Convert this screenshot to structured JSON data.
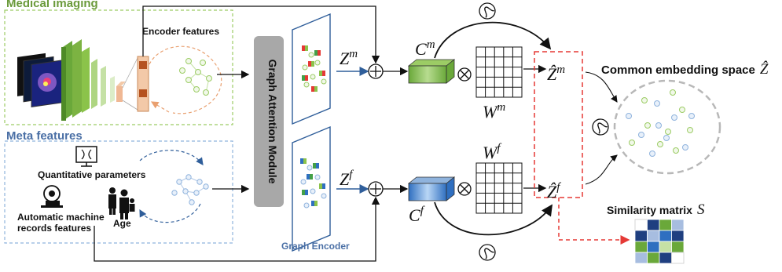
{
  "medical_section": {
    "title": "Medical imaging",
    "encoder_label": "Encoder features"
  },
  "meta_section": {
    "title": "Meta features",
    "quantitative_label": "Quantitative parameters",
    "machine_label": "Automatic machine",
    "machine_label_2": "records features",
    "age_label": "Age"
  },
  "gam": {
    "label": "Graph Attention Module"
  },
  "graph_encoder": {
    "label": "Graph Encoder"
  },
  "symbols": {
    "zm_base": "Z",
    "zm_sup": "m",
    "zf_base": "Z",
    "zf_sup": "f",
    "cm_base": "C",
    "cm_sup": "m",
    "cf_base": "C",
    "cf_sup": "f",
    "wm_base": "W",
    "wm_sup": "m",
    "wf_base": "W",
    "wf_sup": "f",
    "zhm_base": "Ẑ",
    "zhm_sup": "m",
    "zhf_base": "Ẑ",
    "zhf_sup": "f",
    "z_hat": "Ẑ",
    "s": "S"
  },
  "common_space": {
    "label": "Common embedding space"
  },
  "similarity": {
    "label": "Similarity matrix"
  },
  "colors": {
    "green_text": "#6a9a3a",
    "blue_text": "#4a6fa5",
    "red_dash": "#e53935",
    "cm_box": "#8bc34a",
    "cf_box": "#5b9bd5"
  }
}
